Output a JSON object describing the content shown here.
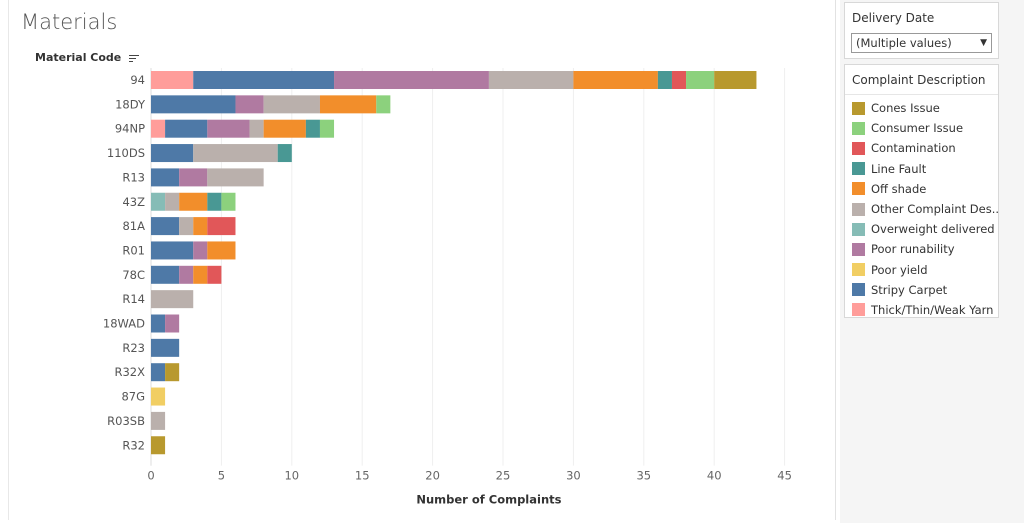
{
  "title": "Materials",
  "row_header": "Material Code",
  "filter": {
    "title": "Delivery Date",
    "value": "(Multiple values)"
  },
  "legend": {
    "title": "Complaint Description",
    "items": [
      {
        "label": "Cones Issue",
        "color": "#b8992e"
      },
      {
        "label": "Consumer Issue",
        "color": "#8cd17d"
      },
      {
        "label": "Contamination",
        "color": "#e15759"
      },
      {
        "label": "Line Fault",
        "color": "#499894"
      },
      {
        "label": "Off shade",
        "color": "#f28e2b"
      },
      {
        "label": "Other Complaint Des..",
        "color": "#bab0ac"
      },
      {
        "label": "Overweight delivered",
        "color": "#86bcb6"
      },
      {
        "label": "Poor runability",
        "color": "#b07aa1"
      },
      {
        "label": "Poor yield",
        "color": "#f1ce63"
      },
      {
        "label": "Stripy Carpet",
        "color": "#4e79a7"
      },
      {
        "label": "Thick/Thin/Weak Yarn",
        "color": "#ff9d9a"
      }
    ]
  },
  "chart_data": {
    "type": "bar",
    "orientation": "horizontal",
    "stacked": true,
    "title": "Materials",
    "ylabel": "Material Code",
    "xlabel": "Number of Complaints",
    "xlim": [
      0,
      47
    ],
    "xticks": [
      0,
      5,
      10,
      15,
      20,
      25,
      30,
      35,
      40,
      45
    ],
    "grid": true,
    "legend_position": "right",
    "categories": [
      "94",
      "18DY",
      "94NP",
      "110DS",
      "R13",
      "43Z",
      "81A",
      "R01",
      "78C",
      "R14",
      "18WAD",
      "R23",
      "R32X",
      "87G",
      "R03SB",
      "R32"
    ],
    "series": [
      {
        "name": "Thick/Thin/Weak Yarn",
        "color": "#ff9d9a",
        "values": [
          3,
          0,
          1,
          0,
          0,
          0,
          0,
          0,
          0,
          0,
          0,
          0,
          0,
          0,
          0,
          0
        ]
      },
      {
        "name": "Overweight delivered",
        "color": "#86bcb6",
        "values": [
          0,
          0,
          0,
          0,
          0,
          1,
          0,
          0,
          0,
          0,
          0,
          0,
          0,
          0,
          0,
          0
        ]
      },
      {
        "name": "Stripy Carpet",
        "color": "#4e79a7",
        "values": [
          10,
          6,
          3,
          3,
          2,
          0,
          2,
          3,
          2,
          0,
          1,
          2,
          1,
          0,
          0,
          0
        ]
      },
      {
        "name": "Poor runability",
        "color": "#b07aa1",
        "values": [
          11,
          2,
          3,
          0,
          2,
          0,
          0,
          1,
          1,
          0,
          1,
          0,
          0,
          0,
          0,
          0
        ]
      },
      {
        "name": "Other Complaint Des..",
        "color": "#bab0ac",
        "values": [
          6,
          4,
          1,
          6,
          4,
          1,
          1,
          0,
          0,
          3,
          0,
          0,
          0,
          0,
          1,
          0
        ]
      },
      {
        "name": "Off shade",
        "color": "#f28e2b",
        "values": [
          6,
          4,
          3,
          0,
          0,
          2,
          1,
          2,
          1,
          0,
          0,
          0,
          0,
          0,
          0,
          0
        ]
      },
      {
        "name": "Line Fault",
        "color": "#499894",
        "values": [
          1,
          0,
          1,
          1,
          0,
          1,
          0,
          0,
          0,
          0,
          0,
          0,
          0,
          0,
          0,
          0
        ]
      },
      {
        "name": "Contamination",
        "color": "#e15759",
        "values": [
          1,
          0,
          0,
          0,
          0,
          0,
          2,
          0,
          1,
          0,
          0,
          0,
          0,
          0,
          0,
          0
        ]
      },
      {
        "name": "Consumer Issue",
        "color": "#8cd17d",
        "values": [
          2,
          1,
          1,
          0,
          0,
          1,
          0,
          0,
          0,
          0,
          0,
          0,
          0,
          0,
          0,
          0
        ]
      },
      {
        "name": "Poor yield",
        "color": "#f1ce63",
        "values": [
          0,
          0,
          0,
          0,
          0,
          0,
          0,
          0,
          0,
          0,
          0,
          0,
          0,
          1,
          0,
          0
        ]
      },
      {
        "name": "Cones Issue",
        "color": "#b8992e",
        "values": [
          3,
          0,
          0,
          0,
          0,
          0,
          0,
          0,
          0,
          0,
          0,
          0,
          1,
          0,
          0,
          1
        ]
      }
    ]
  }
}
